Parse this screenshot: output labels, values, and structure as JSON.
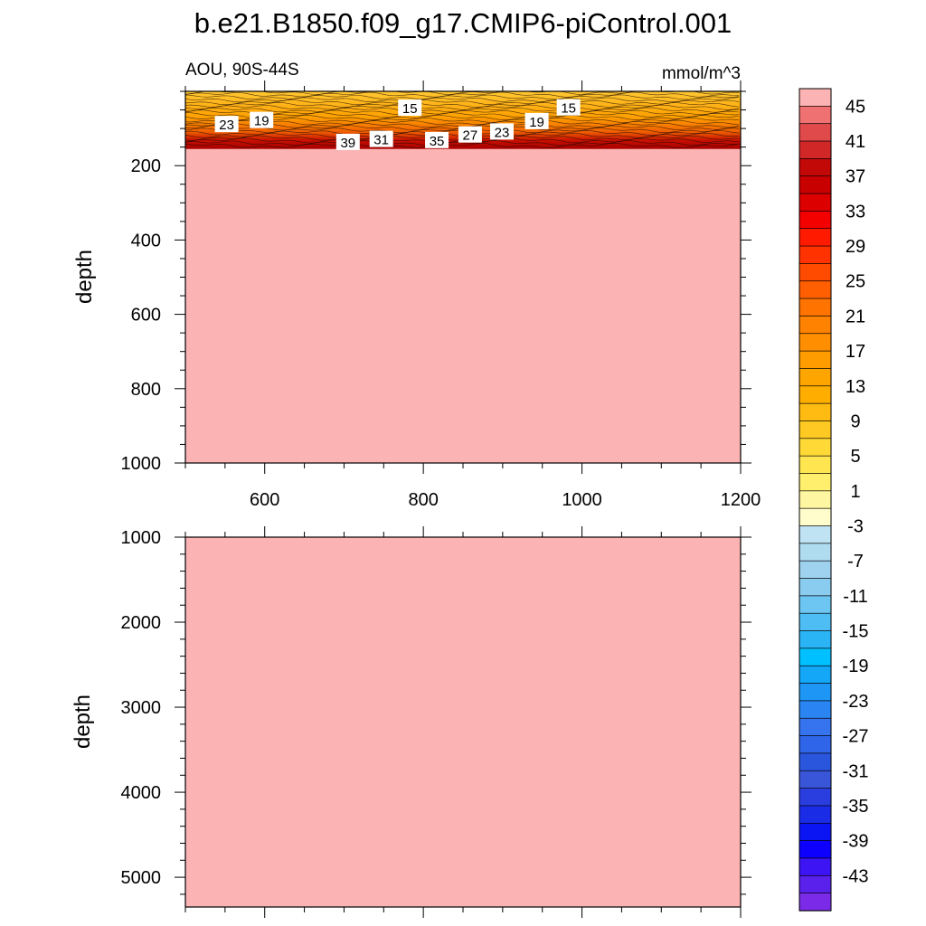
{
  "title": "b.e21.B1850.f09_g17.CMIP6-piControl.001",
  "chart_data": [
    {
      "type": "heatmap",
      "panel": "upper",
      "left_label": "AOU, 90S-44S",
      "right_label": "mmol/m^3",
      "ylabel": "depth",
      "xlabel": "",
      "xlim": [
        500,
        1200
      ],
      "ylim": [
        1000,
        0
      ],
      "xticks": [
        "600",
        "800",
        "1000",
        "1200"
      ],
      "yticks": [
        "200",
        "400",
        "600",
        "800",
        "1000"
      ],
      "ytick_values": [
        200,
        400,
        600,
        800,
        1000
      ],
      "xtick_values": [
        600,
        800,
        1000,
        1200
      ],
      "fill_value": 47,
      "surface_layer": {
        "depth_top": 0,
        "depth_bottom": 155
      },
      "contour_labels": [
        {
          "text": "23",
          "x": 552,
          "depth": 88
        },
        {
          "text": "19",
          "x": 596,
          "depth": 77
        },
        {
          "text": "15",
          "x": 783,
          "depth": 44
        },
        {
          "text": "39",
          "x": 705,
          "depth": 136
        },
        {
          "text": "31",
          "x": 747,
          "depth": 128
        },
        {
          "text": "35",
          "x": 817,
          "depth": 131
        },
        {
          "text": "27",
          "x": 859,
          "depth": 116
        },
        {
          "text": "23",
          "x": 899,
          "depth": 108
        },
        {
          "text": "19",
          "x": 943,
          "depth": 80
        },
        {
          "text": "15",
          "x": 983,
          "depth": 43
        }
      ]
    },
    {
      "type": "heatmap",
      "panel": "lower",
      "ylabel": "depth",
      "xlim": [
        500,
        1200
      ],
      "ylim": [
        5350,
        1000
      ],
      "yticks": [
        "1000",
        "2000",
        "3000",
        "4000",
        "5000"
      ],
      "ytick_values": [
        1000,
        2000,
        3000,
        4000,
        5000
      ],
      "fill_value": 47
    }
  ],
  "colorbar": {
    "labels": [
      "45",
      "41",
      "37",
      "33",
      "29",
      "25",
      "21",
      "17",
      "13",
      "9",
      "5",
      "1",
      "-3",
      "-7",
      "-11",
      "-15",
      "-19",
      "-23",
      "-27",
      "-31",
      "-35",
      "-39",
      "-43"
    ],
    "colors": [
      "#fcb3b3",
      "#ef7171",
      "#e04a4a",
      "#d12727",
      "#c30808",
      "#c80000",
      "#dc0000",
      "#f30000",
      "#ff1a00",
      "#ff3200",
      "#ff4b00",
      "#ff5f00",
      "#ff7300",
      "#ff8200",
      "#ff8f00",
      "#ff9c00",
      "#ffa500",
      "#ffae00",
      "#ffbb11",
      "#ffc923",
      "#ffd935",
      "#ffe54f",
      "#ffef6c",
      "#fff6a1",
      "#fffdcc",
      "#c0e3f3",
      "#b0dcf0",
      "#9ed2ef",
      "#8accef",
      "#6dc6f2",
      "#4dbdf4",
      "#2ab4f6",
      "#00c0ff",
      "#14a6f7",
      "#1e96f5",
      "#2a84f2",
      "#3574ee",
      "#2f65e8",
      "#2a56de",
      "#3a56d8",
      "#2a3ee0",
      "#1b2ce7",
      "#0b15f4",
      "#0d00ff",
      "#3d14f3",
      "#5a20ec",
      "#7b2be8"
    ]
  }
}
